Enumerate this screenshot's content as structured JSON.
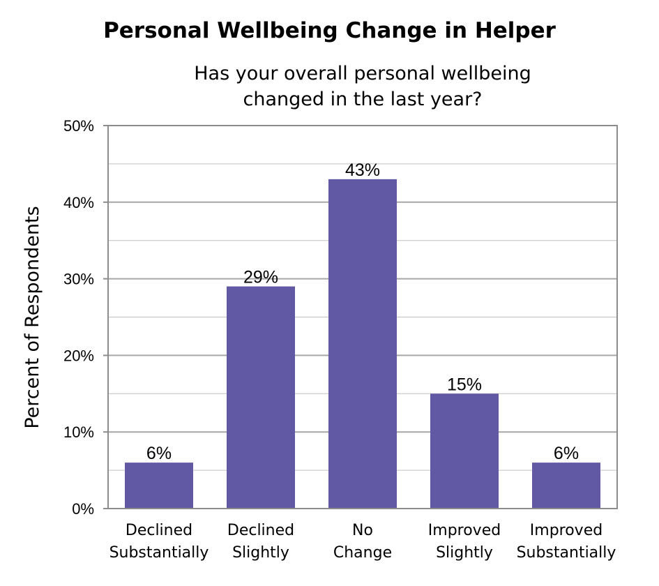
{
  "chart_data": {
    "type": "bar",
    "title": "Personal Wellbeing Change in Helper",
    "subtitle": "Has your overall personal wellbeing changed in the last year?",
    "xlabel": "",
    "ylabel": "Percent of Respondents",
    "categories": [
      [
        "Declined",
        "Substantially"
      ],
      [
        "Declined",
        "Slightly"
      ],
      [
        "No",
        "Change"
      ],
      [
        "Improved",
        "Slightly"
      ],
      [
        "Improved",
        "Substantially"
      ]
    ],
    "values": [
      6,
      29,
      43,
      15,
      6
    ],
    "value_labels": [
      "6%",
      "29%",
      "43%",
      "15%",
      "6%"
    ],
    "ylim": [
      0,
      50
    ],
    "yticks": [
      0,
      10,
      20,
      30,
      40,
      50
    ],
    "ytick_labels": [
      "0%",
      "10%",
      "20%",
      "30%",
      "40%",
      "50%"
    ],
    "grid": true,
    "legend": "none",
    "colors": {
      "bar": "#6159a3",
      "grid": "#c0c0c0",
      "axis": "#8c8c8c"
    }
  }
}
